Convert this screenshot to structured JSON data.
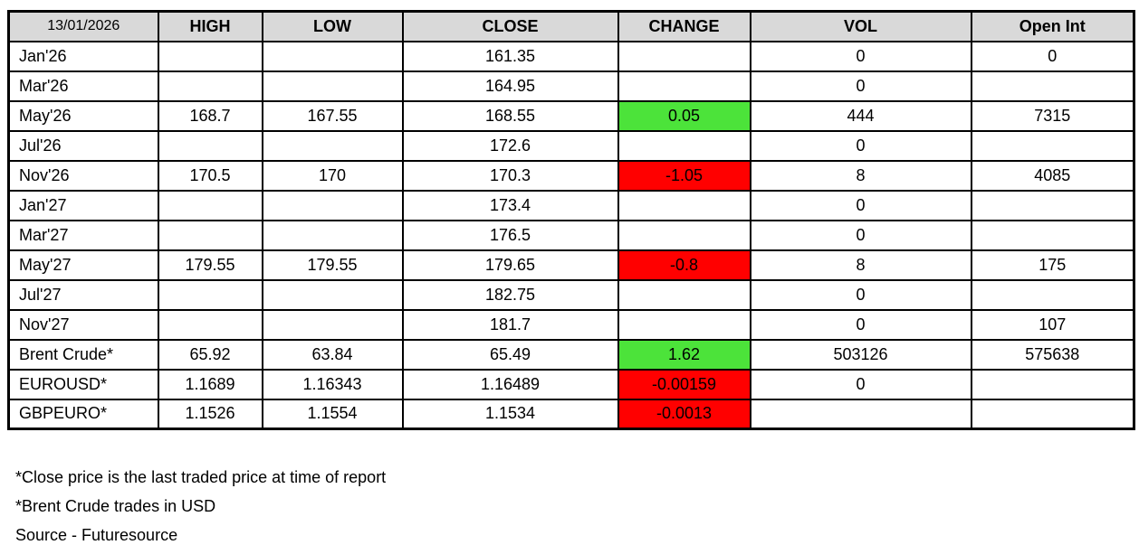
{
  "report": {
    "date": "13/01/2026",
    "columns": [
      "HIGH",
      "LOW",
      "CLOSE",
      "CHANGE",
      "VOL",
      "Open Int"
    ]
  },
  "rows": [
    {
      "label": "Jan'26",
      "high": "",
      "low": "",
      "close": "161.35",
      "change": "",
      "change_color": "",
      "vol": "0",
      "open_int": "0"
    },
    {
      "label": "Mar'26",
      "high": "",
      "low": "",
      "close": "164.95",
      "change": "",
      "change_color": "",
      "vol": "0",
      "open_int": ""
    },
    {
      "label": "May'26",
      "high": "168.7",
      "low": "167.55",
      "close": "168.55",
      "change": "0.05",
      "change_color": "green",
      "vol": "444",
      "open_int": "7315"
    },
    {
      "label": "Jul'26",
      "high": "",
      "low": "",
      "close": "172.6",
      "change": "",
      "change_color": "",
      "vol": "0",
      "open_int": ""
    },
    {
      "label": "Nov'26",
      "high": "170.5",
      "low": "170",
      "close": "170.3",
      "change": "-1.05",
      "change_color": "red",
      "vol": "8",
      "open_int": "4085"
    },
    {
      "label": "Jan'27",
      "high": "",
      "low": "",
      "close": "173.4",
      "change": "",
      "change_color": "",
      "vol": "0",
      "open_int": ""
    },
    {
      "label": "Mar'27",
      "high": "",
      "low": "",
      "close": "176.5",
      "change": "",
      "change_color": "",
      "vol": "0",
      "open_int": ""
    },
    {
      "label": "May'27",
      "high": "179.55",
      "low": "179.55",
      "close": "179.65",
      "change": "-0.8",
      "change_color": "red",
      "vol": "8",
      "open_int": "175"
    },
    {
      "label": "Jul'27",
      "high": "",
      "low": "",
      "close": "182.75",
      "change": "",
      "change_color": "",
      "vol": "0",
      "open_int": ""
    },
    {
      "label": "Nov'27",
      "high": "",
      "low": "",
      "close": "181.7",
      "change": "",
      "change_color": "",
      "vol": "0",
      "open_int": "107"
    },
    {
      "label": "Brent Crude*",
      "high": "65.92",
      "low": "63.84",
      "close": "65.49",
      "change": "1.62",
      "change_color": "green",
      "vol": "503126",
      "open_int": "575638"
    },
    {
      "label": "EUROUSD*",
      "high": "1.1689",
      "low": "1.16343",
      "close": "1.16489",
      "change": "-0.00159",
      "change_color": "red",
      "vol": "0",
      "open_int": ""
    },
    {
      "label": "GBPEURO*",
      "high": "1.1526",
      "low": "1.1554",
      "close": "1.1534",
      "change": "-0.0013",
      "change_color": "red",
      "vol": "",
      "open_int": ""
    }
  ],
  "footnotes": [
    "*Close price is the last traded price at time of report",
    "*Brent Crude trades in USD",
    "Source - Futuresource"
  ],
  "colors": {
    "positive_bg": "#4ce33a",
    "negative_bg": "#ff0000",
    "header_bg": "#d9d9d9",
    "border": "#000000"
  }
}
